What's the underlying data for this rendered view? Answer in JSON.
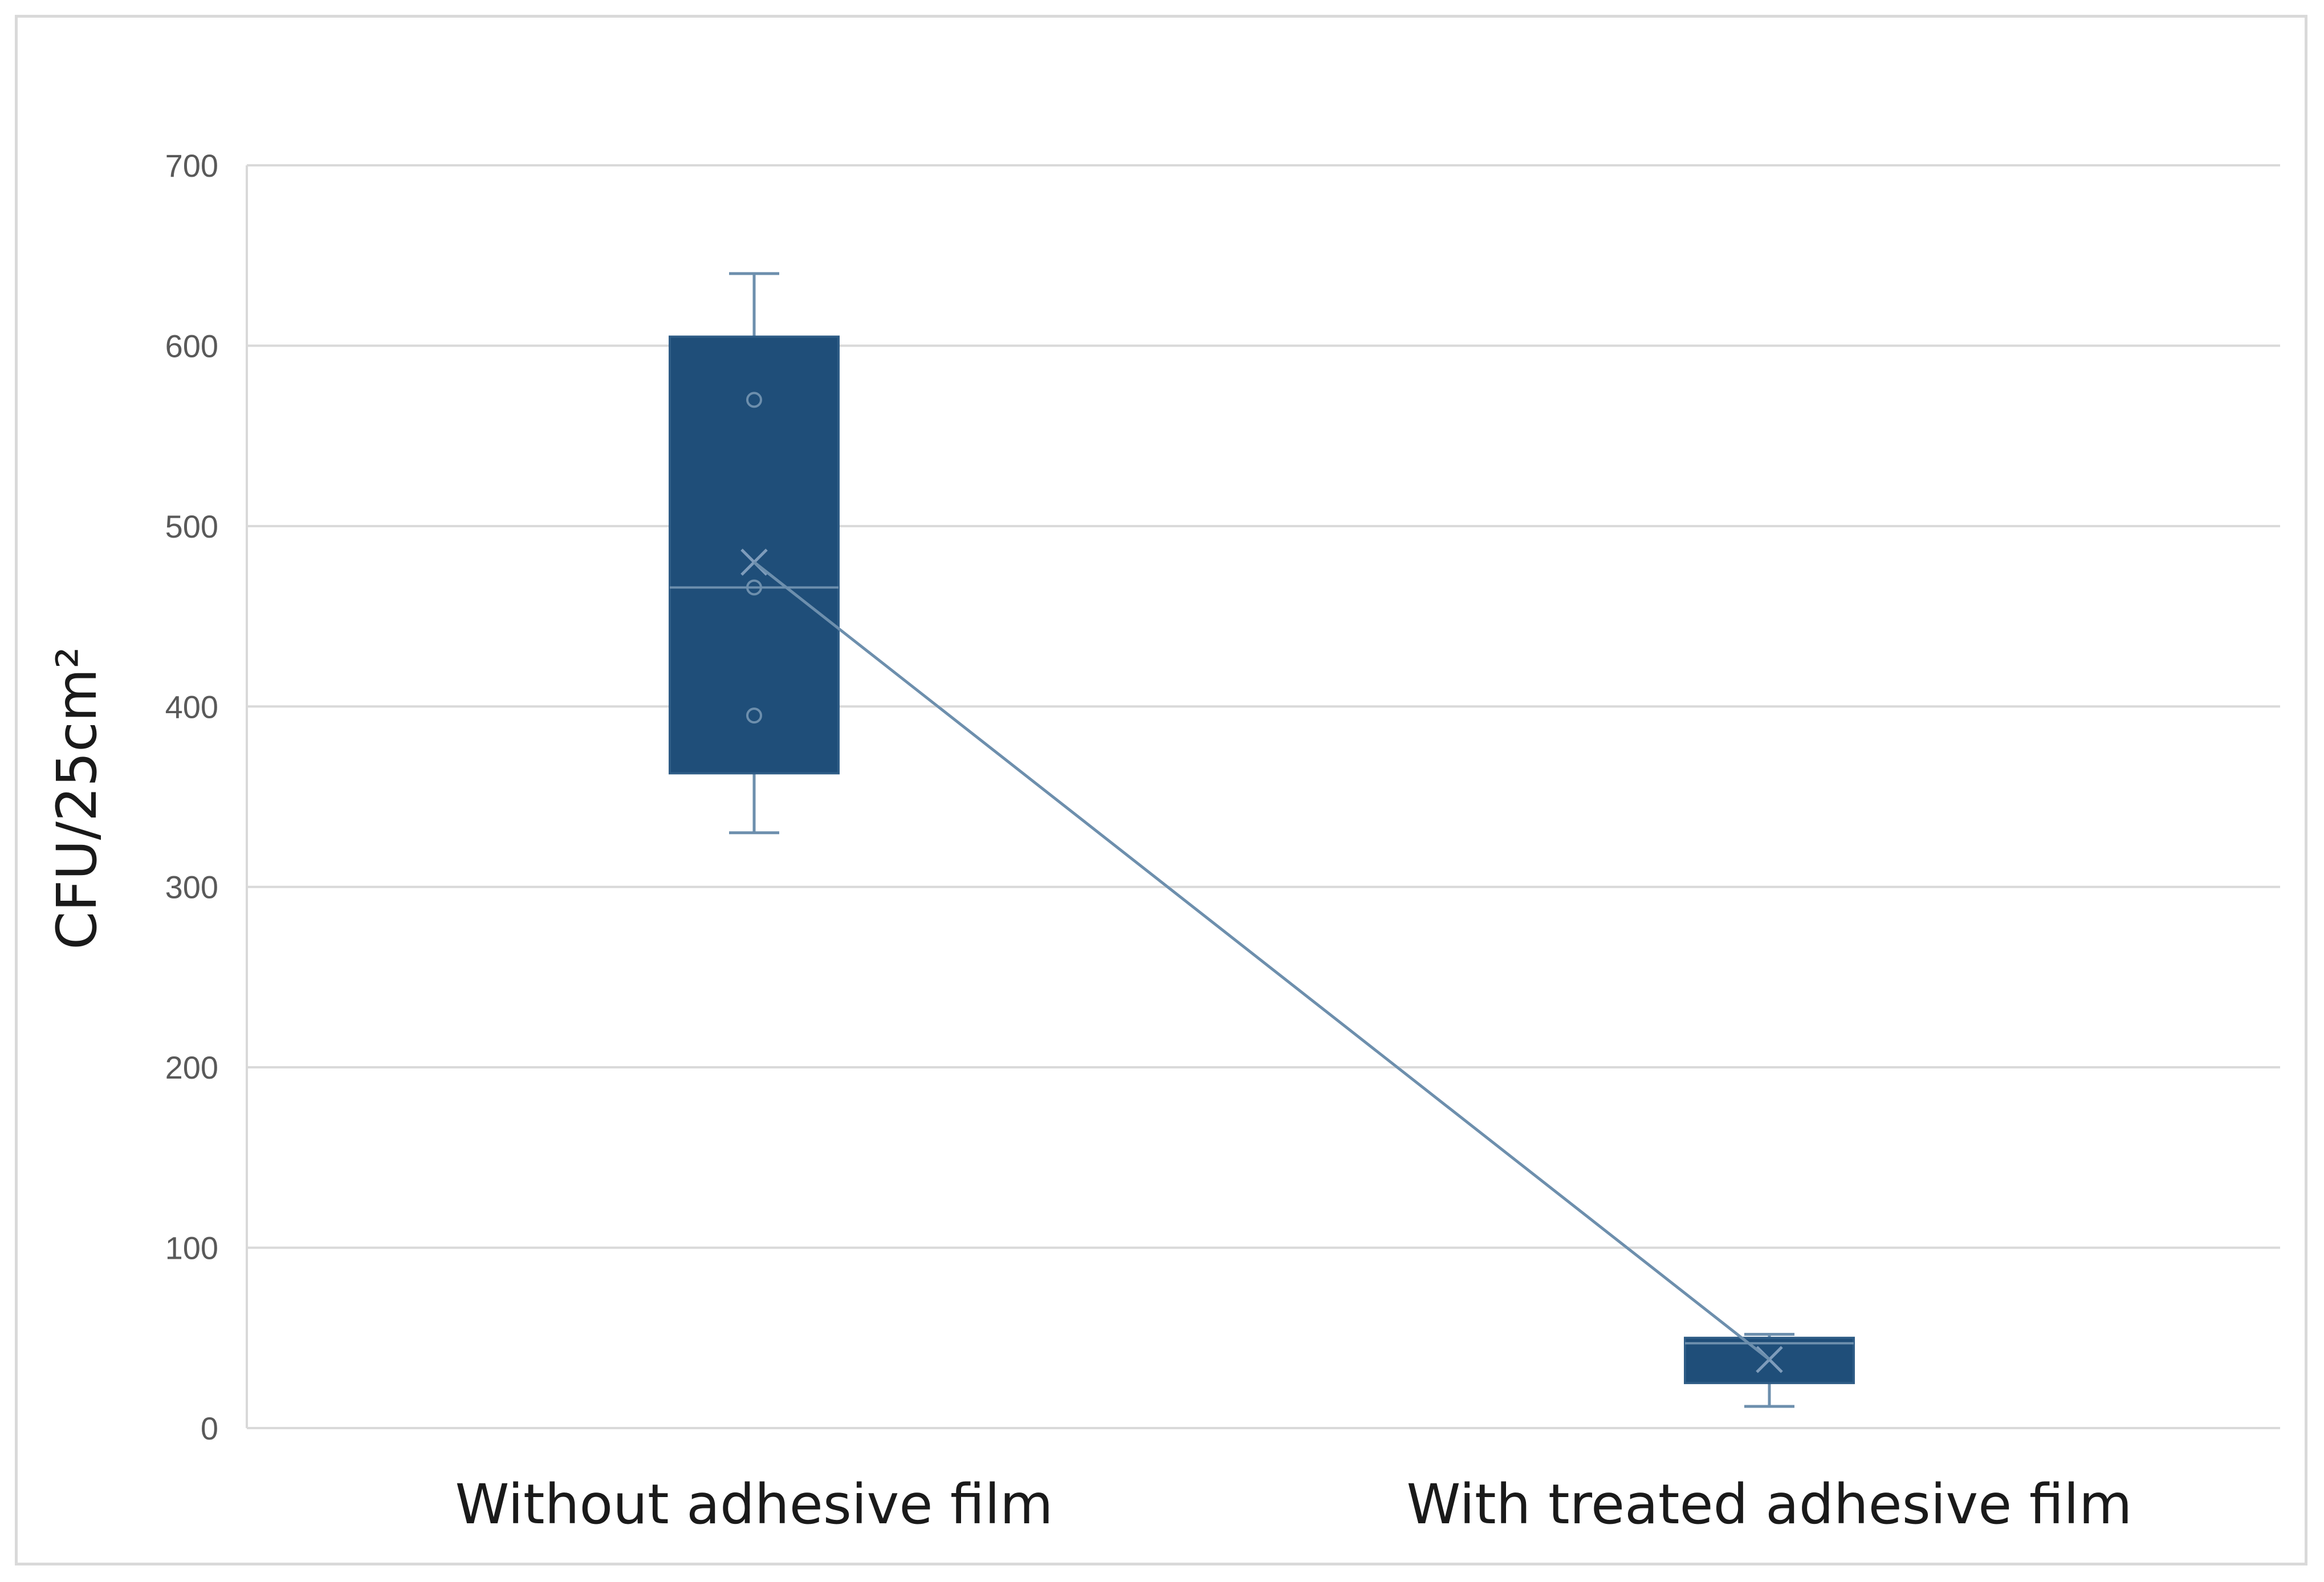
{
  "chart_data": {
    "type": "box",
    "ylabel": "CFU/25cm²",
    "ylim": [
      0,
      700
    ],
    "yticks": [
      0,
      100,
      200,
      300,
      400,
      500,
      600,
      700
    ],
    "grid": true,
    "colors": {
      "box": "#1f4e79",
      "line": "#6d8fad",
      "grid": "#d9d9d9"
    },
    "categories": [
      "Without adhesive film",
      "With treated adhesive film"
    ],
    "boxes": [
      {
        "category": "Without adhesive film",
        "min": 330,
        "q1": 363,
        "median": 466,
        "q3": 605,
        "max": 640,
        "mean": 480,
        "points": [
          570,
          466,
          395
        ]
      },
      {
        "category": "With treated adhesive film",
        "min": 12,
        "q1": 25,
        "median": 47,
        "q3": 50,
        "max": 52,
        "mean": 38,
        "points": []
      }
    ],
    "mean_line": true
  }
}
